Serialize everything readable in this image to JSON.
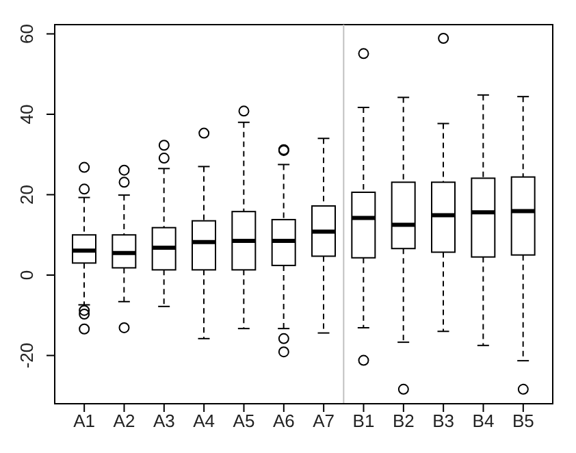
{
  "chart_data": {
    "type": "box",
    "categories": [
      "A1",
      "A2",
      "A3",
      "A4",
      "A5",
      "A6",
      "A7",
      "B1",
      "B2",
      "B3",
      "B4",
      "B5"
    ],
    "color": "#000000",
    "marker": "circle",
    "line_style": "dashed",
    "boxes": [
      {
        "low": -7.4,
        "q1": 3,
        "median": 6.1,
        "q3": 10,
        "high": 19.3,
        "outliers": [
          26.8,
          21.4,
          -8.8,
          -9.7,
          -13.4
        ]
      },
      {
        "low": -6.6,
        "q1": 1.8,
        "median": 5.5,
        "q3": 10,
        "high": 19.9,
        "outliers": [
          26.1,
          23.1,
          -13.1
        ]
      },
      {
        "low": -7.8,
        "q1": 1.3,
        "median": 6.8,
        "q3": 11.8,
        "high": 26.5,
        "outliers": [
          32.3,
          29.1
        ]
      },
      {
        "low": -15.8,
        "q1": 1.3,
        "median": 8.2,
        "q3": 13.5,
        "high": 27,
        "outliers": [
          35.3
        ]
      },
      {
        "low": -13.3,
        "q1": 1.3,
        "median": 8.5,
        "q3": 15.8,
        "high": 38,
        "outliers": [
          40.8
        ]
      },
      {
        "low": -13.3,
        "q1": 2.4,
        "median": 8.5,
        "q3": 13.8,
        "high": 27.5,
        "outliers": [
          31,
          31.2,
          -15.8,
          -19.1
        ]
      },
      {
        "low": -14.4,
        "q1": 4.7,
        "median": 10.8,
        "q3": 17.2,
        "high": 34
      },
      {
        "low": -13.1,
        "q1": 4.3,
        "median": 14.2,
        "q3": 20.6,
        "high": 41.7,
        "outliers": [
          55.1,
          -21.2
        ]
      },
      {
        "low": -16.7,
        "q1": 6.6,
        "median": 12.5,
        "q3": 23.1,
        "high": 44.2,
        "outliers": [
          -28.4
        ]
      },
      {
        "low": -14,
        "q1": 5.7,
        "median": 14.9,
        "q3": 23.1,
        "high": 37.7,
        "outliers": [
          58.9
        ]
      },
      {
        "low": -17.5,
        "q1": 4.5,
        "median": 15.6,
        "q3": 24.1,
        "high": 44.8
      },
      {
        "low": -21.3,
        "q1": 5,
        "median": 15.9,
        "q3": 24.4,
        "high": 44.4,
        "outliers": [
          -28.4
        ]
      }
    ],
    "ylim": [
      -32,
      62.3
    ],
    "yticks": [
      -20,
      0,
      20,
      40,
      60
    ]
  }
}
